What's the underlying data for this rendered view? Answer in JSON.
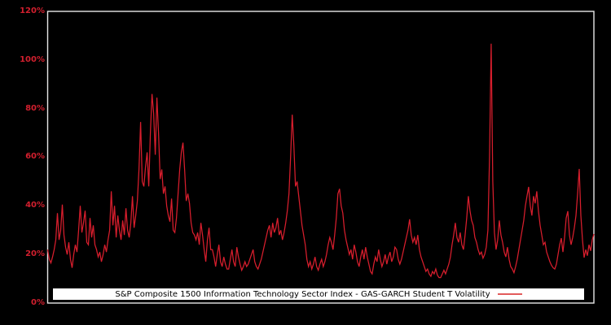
{
  "figure": {
    "background": "#000000",
    "border_color": "#e8e8e8"
  },
  "y_axis": {
    "ticks": [
      "120%",
      "100%",
      "80%",
      "60%",
      "40%",
      "20%",
      "0%"
    ],
    "color": "#d21f2e"
  },
  "legend": {
    "label": "S&P Composite 1500 Information Technology Sector Index - GAS-GARCH Student T Volatility",
    "background": "#ffffff",
    "text_color": "#000000",
    "sample_color": "#e25b5b"
  },
  "chart_data": {
    "type": "line",
    "title": "",
    "xlabel": "",
    "ylabel": "",
    "ylim": [
      0,
      120
    ],
    "ytick_values": [
      0,
      20,
      40,
      60,
      80,
      100,
      120
    ],
    "ytick_labels": [
      "0%",
      "20%",
      "40%",
      "60%",
      "80%",
      "100%",
      "120%"
    ],
    "x_axis_labels_visible": false,
    "grid": false,
    "legend_position": "bottom-center-inside",
    "series": [
      {
        "name": "S&P Composite 1500 Information Technology Sector Index - GAS-GARCH Student T Volatility",
        "color": "#d81e2d",
        "unit": "percent",
        "values": [
          22,
          18,
          16.5,
          19,
          22,
          26,
          37,
          26,
          30,
          40.5,
          28,
          23,
          20,
          25,
          18,
          14.5,
          20,
          24,
          21,
          30,
          40,
          29,
          33,
          38,
          25,
          24,
          35,
          27,
          32,
          24,
          22,
          19,
          21,
          17,
          20,
          24,
          21,
          26,
          30,
          46,
          32,
          40,
          27,
          36,
          30,
          26,
          34,
          28,
          39,
          30,
          27,
          33,
          44,
          31,
          36,
          42,
          55,
          74.5,
          50,
          48,
          56,
          62,
          48,
          70,
          86,
          78,
          61,
          84.5,
          70,
          51,
          55,
          45,
          48,
          40,
          36,
          33.5,
          43,
          30,
          29,
          35,
          45,
          55,
          62,
          66,
          55,
          42,
          45,
          41,
          33,
          29,
          28,
          26,
          29,
          24,
          33,
          28,
          22,
          17,
          26,
          31,
          22,
          22,
          19,
          15,
          20,
          24,
          17,
          15,
          19,
          16,
          14,
          14,
          18,
          22,
          17,
          15,
          23,
          19,
          16,
          13.5,
          15,
          17,
          15,
          16,
          18,
          20,
          22,
          17,
          15,
          14,
          16,
          18,
          21,
          24,
          27,
          30,
          32,
          27,
          33,
          29,
          31,
          35,
          28,
          30,
          26,
          29,
          33,
          38,
          45,
          60,
          77.5,
          65,
          48,
          50,
          44,
          38,
          32,
          28,
          24,
          18,
          15,
          17,
          14,
          16,
          19,
          15,
          13.5,
          16,
          18,
          15,
          17,
          20,
          24,
          27,
          25,
          22,
          28,
          35,
          45,
          47,
          40,
          37,
          30,
          26,
          23,
          20,
          22,
          18,
          24,
          21,
          17,
          15,
          19,
          22,
          18,
          23,
          19,
          16,
          13,
          12,
          16,
          19,
          17,
          22,
          18,
          15,
          17,
          20,
          16,
          19,
          21,
          17,
          19,
          23,
          22,
          18,
          16,
          18,
          21,
          24,
          27,
          30,
          34.5,
          28,
          25,
          27,
          24,
          28,
          22,
          19,
          17,
          15,
          13,
          14,
          12,
          11,
          13,
          12,
          14,
          11.5,
          10.5,
          10.5,
          12,
          13.5,
          12,
          14,
          16,
          19,
          24,
          28,
          33,
          27,
          25,
          29,
          24,
          22,
          28,
          35,
          44,
          38,
          34,
          32,
          27,
          25,
          22,
          20,
          21,
          18.5,
          20,
          23,
          30,
          60,
          106.7,
          50,
          29,
          22,
          26,
          34,
          28,
          25,
          21,
          19,
          23,
          18,
          15,
          14,
          12.5,
          15,
          18,
          22,
          26,
          30,
          34,
          40,
          44,
          47.8,
          40,
          36,
          44,
          41,
          46,
          38,
          32,
          28,
          24,
          25,
          21,
          19,
          17,
          15.5,
          14.5,
          14,
          16,
          20,
          24,
          26.7,
          21,
          27,
          35,
          37.8,
          28,
          24,
          27,
          31,
          36,
          45,
          55.2,
          36,
          26,
          18.7,
          22,
          19.5,
          24,
          21.5,
          26,
          28.4
        ]
      }
    ]
  }
}
